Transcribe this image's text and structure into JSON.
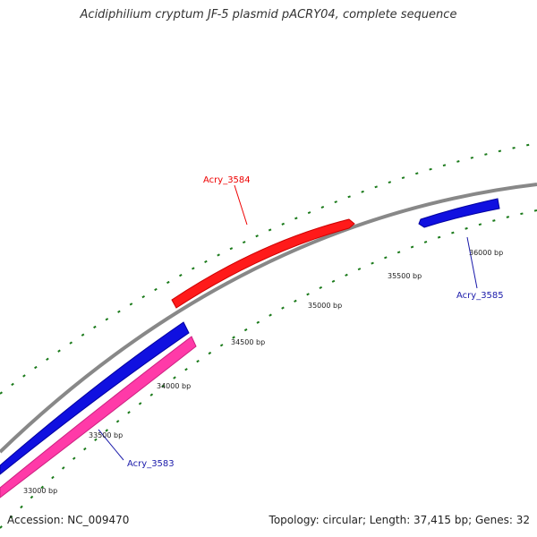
{
  "title": "Acidiphilium cryptum JF-5 plasmid pACRY04, complete sequence",
  "footer": {
    "accession": "Accession: NC_009470",
    "summary": "Topology: circular; Length: 37,415 bp; Genes: 32"
  },
  "colors": {
    "backbone": "#888888",
    "tick": "#1a7a1a",
    "gene_red": "#ff1a1a",
    "gene_blue": "#1010e0",
    "gene_pink": "#ff3aa8",
    "label_red": "#ee0000",
    "label_blue": "#1a1aaa"
  },
  "ticks": [
    {
      "label": "33000 bp"
    },
    {
      "label": "33500 bp"
    },
    {
      "label": "34000 bp"
    },
    {
      "label": "34500 bp"
    },
    {
      "label": "35000 bp"
    },
    {
      "label": "35500 bp"
    },
    {
      "label": "36000 bp"
    }
  ],
  "genes": [
    {
      "name": "Acry_3584",
      "color": "red"
    },
    {
      "name": "Acry_3585",
      "color": "blue"
    },
    {
      "name": "Acry_3583",
      "color": "pink"
    }
  ]
}
